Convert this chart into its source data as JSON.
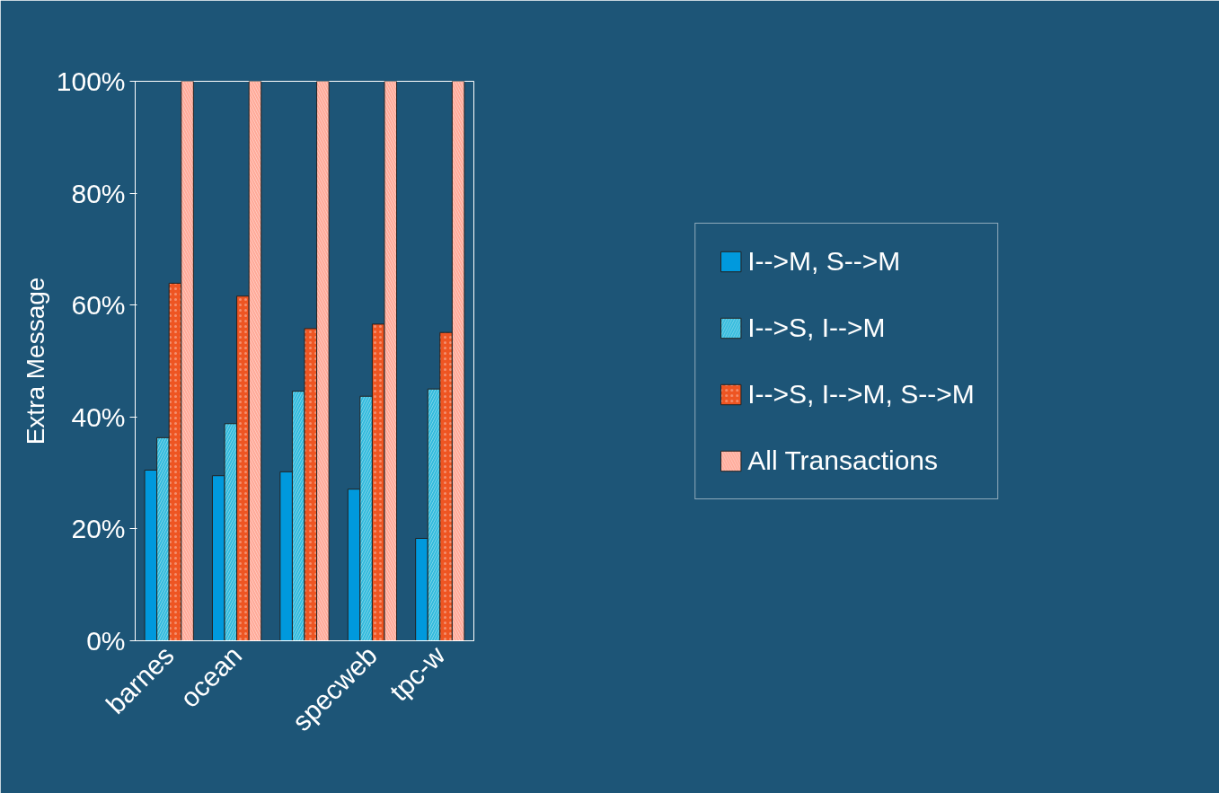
{
  "chart_data": {
    "type": "bar",
    "ylabel": "Extra Message",
    "categories": [
      "barnes",
      "ocean",
      null,
      "specweb",
      "tpc-w"
    ],
    "series": [
      {
        "name": "I-->M, S-->M",
        "color": "#0099dd",
        "values": [
          30.5,
          29.5,
          30.2,
          27.1,
          18.3
        ]
      },
      {
        "name": "I-->S, I-->M",
        "color": "#33bbdd",
        "values": [
          36.3,
          38.8,
          44.6,
          43.7,
          45.0
        ]
      },
      {
        "name": "I-->S, I-->M, S-->M",
        "color": "#ee5522",
        "values": [
          63.9,
          61.6,
          55.8,
          56.6,
          55.1
        ]
      },
      {
        "name": "All Transactions",
        "color": "#ffaa99",
        "values": [
          100,
          100,
          100,
          100,
          100
        ]
      }
    ],
    "ylim": [
      0,
      100
    ],
    "yticks": [
      {
        "value": 0,
        "label": "0%"
      },
      {
        "value": 20,
        "label": "20%"
      },
      {
        "value": 40,
        "label": "40%"
      },
      {
        "value": 60,
        "label": "60%"
      },
      {
        "value": 80,
        "label": "80%"
      },
      {
        "value": 100,
        "label": "100%"
      }
    ],
    "grid": false,
    "legend": "right"
  }
}
